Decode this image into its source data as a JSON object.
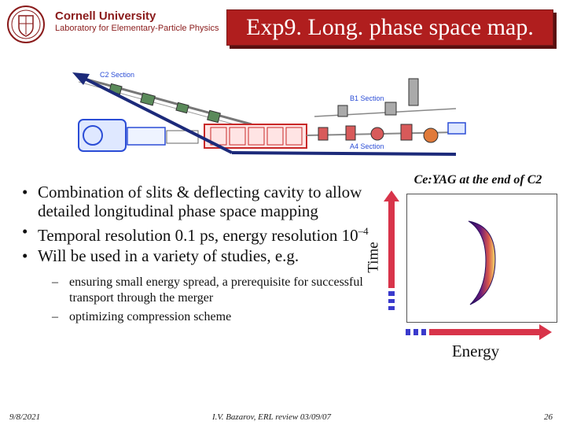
{
  "header": {
    "university": "Cornell University",
    "lab": "Laboratory for Elementary-Particle Physics",
    "title": "Exp9. Long. phase space map."
  },
  "schematic": {
    "c2_label": "C2 Section",
    "b1_label": "B1 Section",
    "a4_label": "A4 Section"
  },
  "bullets": [
    "Combination of slits & deflecting cavity to allow detailed longitudinal phase space mapping",
    "Temporal resolution 0.1 ps, energy resolution 10",
    "Will be used in a variety of studies, e.g."
  ],
  "bullet2_exponent": "–4",
  "subbullets": [
    "ensuring small energy spread, a prerequisite for successful transport through the merger",
    "optimizing compression scheme"
  ],
  "figure": {
    "caption": "Ce:YAG at the end of C2",
    "time_axis": "Time",
    "energy_axis": "Energy"
  },
  "footer": {
    "date": "9/8/2021",
    "author": "I.V. Bazarov, ERL review 03/09/07",
    "page": "26"
  },
  "colors": {
    "title_bg": "#b01e1e",
    "cornell_red": "#8a1b1b",
    "arrow": "#d8344a",
    "axis_blue": "#3a3acc"
  }
}
